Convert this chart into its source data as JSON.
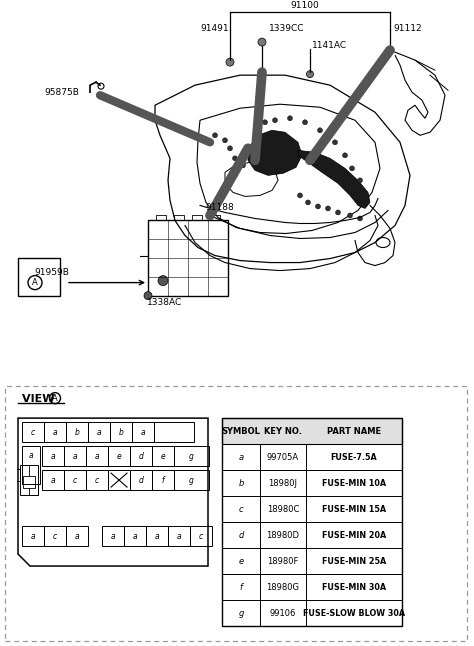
{
  "bg_color": "#ffffff",
  "table_headers": [
    "SYMBOL",
    "KEY NO.",
    "PART NAME"
  ],
  "table_rows": [
    [
      "a",
      "99705A",
      "FUSE-7.5A"
    ],
    [
      "b",
      "18980J",
      "FUSE-MIN 10A"
    ],
    [
      "c",
      "18980C",
      "FUSE-MIN 15A"
    ],
    [
      "d",
      "18980D",
      "FUSE-MIN 20A"
    ],
    [
      "e",
      "18980F",
      "FUSE-MIN 25A"
    ],
    [
      "f",
      "18980G",
      "FUSE-MIN 30A"
    ],
    [
      "g",
      "99106",
      "FUSE-SLOW BLOW 30A"
    ]
  ]
}
